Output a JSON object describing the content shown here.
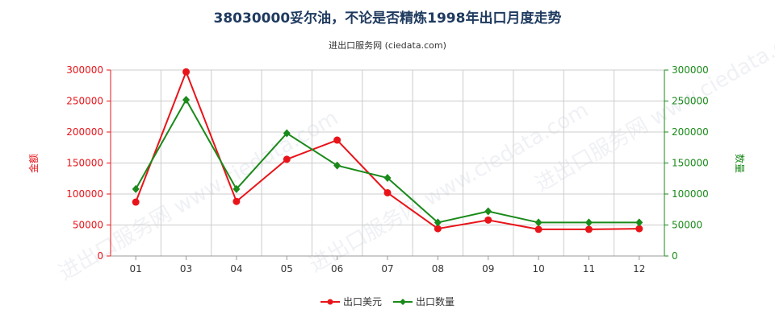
{
  "header": {
    "title": "38030000妥尔油，不论是否精炼1998年出口月度走势",
    "subtitle": "进出口服务网 (ciedata.com)"
  },
  "watermark": "进出口服务网 www.ciedata.com",
  "colors": {
    "left_axis": "#e8141a",
    "right_axis": "#1a8a1a",
    "series_value": "#e8141a",
    "series_qty": "#1a8a1a",
    "grid": "#cccccc"
  },
  "chart_data": {
    "type": "line",
    "title": "38030000妥尔油，不论是否精炼1998年出口月度走势",
    "categories": [
      "01",
      "03",
      "04",
      "05",
      "06",
      "07",
      "08",
      "09",
      "10",
      "11",
      "12"
    ],
    "y_left": {
      "label": "金额",
      "ylim": [
        0,
        300000
      ],
      "ticks": [
        "0",
        "50000",
        "100000",
        "150000",
        "200000",
        "250000",
        "300000"
      ]
    },
    "y_right": {
      "label": "数量",
      "ylim": [
        0,
        300000
      ],
      "ticks": [
        "0",
        "50000",
        "100000",
        "150000",
        "200000",
        "250000",
        "300000"
      ]
    },
    "series": [
      {
        "name": "出口美元",
        "axis": "left",
        "marker": "circle",
        "values": [
          87000,
          297000,
          88000,
          156000,
          187000,
          102000,
          44000,
          58000,
          43000,
          43000,
          44000
        ]
      },
      {
        "name": "出口数量",
        "axis": "right",
        "marker": "diamond",
        "values": [
          108000,
          252000,
          108000,
          198000,
          146000,
          126000,
          54000,
          72000,
          54000,
          54000,
          54000
        ]
      }
    ],
    "grid": true,
    "legend_position": "bottom-center"
  }
}
